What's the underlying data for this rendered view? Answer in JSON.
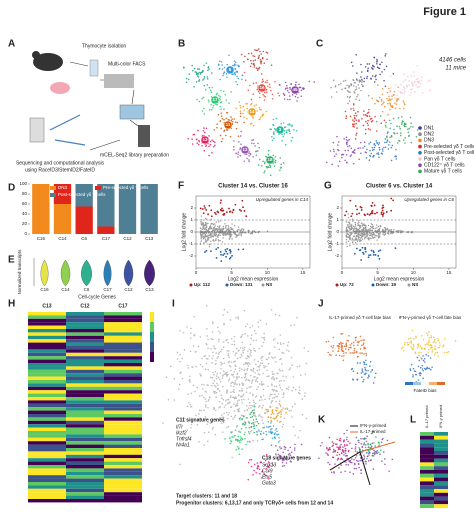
{
  "figure_title": "Figure 1",
  "panels": {
    "A": {
      "label": "A",
      "steps": [
        "Thymocyte isolation",
        "Multi-color FACS",
        "mCEL-Seq2 library preparation",
        "Sequencing and computational analysis",
        "using RaceID3/StemID2/FateID"
      ]
    },
    "B": {
      "label": "B",
      "clusters": [
        "16",
        "6",
        "14",
        "17",
        "12",
        "13",
        "3",
        "11",
        "18",
        "45"
      ]
    },
    "C": {
      "label": "C",
      "cells": "4146 cells",
      "mice": "11 mice",
      "legend": [
        {
          "name": "DN1",
          "color": "#3b3b8f"
        },
        {
          "name": "DN2",
          "color": "#8c8c8c"
        },
        {
          "name": "DN3",
          "color": "#f28a1e"
        },
        {
          "name": "Pre-selected γδ T cells",
          "color": "#e0261c"
        },
        {
          "name": "Post-selected γδ T cells",
          "color": "#2f74c0"
        },
        {
          "name": "Pan γδ T cells",
          "color": "#f6c4d8"
        },
        {
          "name": "CD122⁺ γδ T cells",
          "color": "#8e44ad"
        },
        {
          "name": "Mature γδ T cells",
          "color": "#35a853"
        }
      ]
    },
    "D": {
      "label": "D",
      "type": "bar",
      "categories": [
        "C16",
        "C14",
        "C6",
        "C17",
        "C12",
        "C13"
      ],
      "series": [
        {
          "name": "DN3",
          "color": "#f28a1e",
          "values": [
            100,
            60,
            0,
            0,
            0,
            0
          ]
        },
        {
          "name": "Pre-selected γδ T cells",
          "color": "#e0261c",
          "values": [
            0,
            40,
            55,
            15,
            0,
            0
          ]
        },
        {
          "name": "Post-selected γδ T cells",
          "color": "#4e7f94",
          "values": [
            0,
            0,
            45,
            85,
            100,
            100
          ]
        }
      ],
      "ylim": [
        0,
        100
      ],
      "yticks": [
        0,
        20,
        40,
        60,
        80,
        100
      ]
    },
    "E": {
      "label": "E",
      "y_label": "Normalized transcripts",
      "x_label": "Cell-cycle Genes",
      "categories": [
        "C16",
        "C14",
        "C6",
        "C17",
        "C12",
        "C13"
      ],
      "colors": [
        "#e6e34a",
        "#8fd14f",
        "#2fb08f",
        "#2b7fb8",
        "#3d52a1",
        "#46247a"
      ]
    },
    "F": {
      "label": "F",
      "title": "Cluster 14 vs. Cluster 16",
      "subtitle": "Upregulated genes in C14",
      "x_label": "Log2 mean expression",
      "y_label": "Log2 fold change",
      "ylim": [
        -3,
        3
      ],
      "yticks": [
        -2,
        -1,
        0,
        1,
        2
      ],
      "xlim": [
        0,
        16
      ],
      "xticks": [
        0,
        5,
        10,
        15
      ],
      "fc_thresholds": [
        -1,
        1
      ],
      "legend": [
        "Up: 112",
        "Down: 131",
        "NS"
      ]
    },
    "G": {
      "label": "G",
      "title": "Cluster 6 vs. Cluster 14",
      "subtitle": "Upregulated genes in C6",
      "x_label": "Log2 mean expression",
      "y_label": "Log2 fold change",
      "ylim": [
        -3,
        3
      ],
      "yticks": [
        -2,
        -1,
        0,
        1,
        2
      ],
      "xlim": [
        0,
        16
      ],
      "xticks": [
        0,
        5,
        10,
        15
      ],
      "fc_thresholds": [
        -1,
        1
      ],
      "legend": [
        "Up: 72",
        "Down: 19",
        "NS"
      ]
    },
    "H": {
      "label": "H",
      "columns": [
        "C13",
        "C12",
        "C17"
      ]
    },
    "I": {
      "label": "I",
      "c11_title": "C11 signature genes",
      "c11_genes": [
        "Il7r",
        "Ikzf2",
        "Tnfrsf4",
        "Nr4a1"
      ],
      "c18_title": "C18 signature genes",
      "c18_genes": [
        "Sox13",
        "Ccr9",
        "Etv5",
        "Gata3"
      ],
      "targets": "Target clusters: 11 and 18",
      "progenitors": "Progenitor clusters: 6,13,17 and only TCRγδ+ cells from 12 and 14"
    },
    "J": {
      "label": "J",
      "left_title": "IL-17-primed γδ T-cell fate bias",
      "right_title": "IFN-γ-primed γδ T-cell fate bias",
      "bar_label": "FateID bias"
    },
    "K": {
      "label": "K",
      "legend": [
        "IFN-γ-primed",
        "IL-17-primed"
      ]
    },
    "L": {
      "label": "L",
      "columns": [
        "IL-17 primed",
        "IFN-γ primed"
      ]
    }
  }
}
